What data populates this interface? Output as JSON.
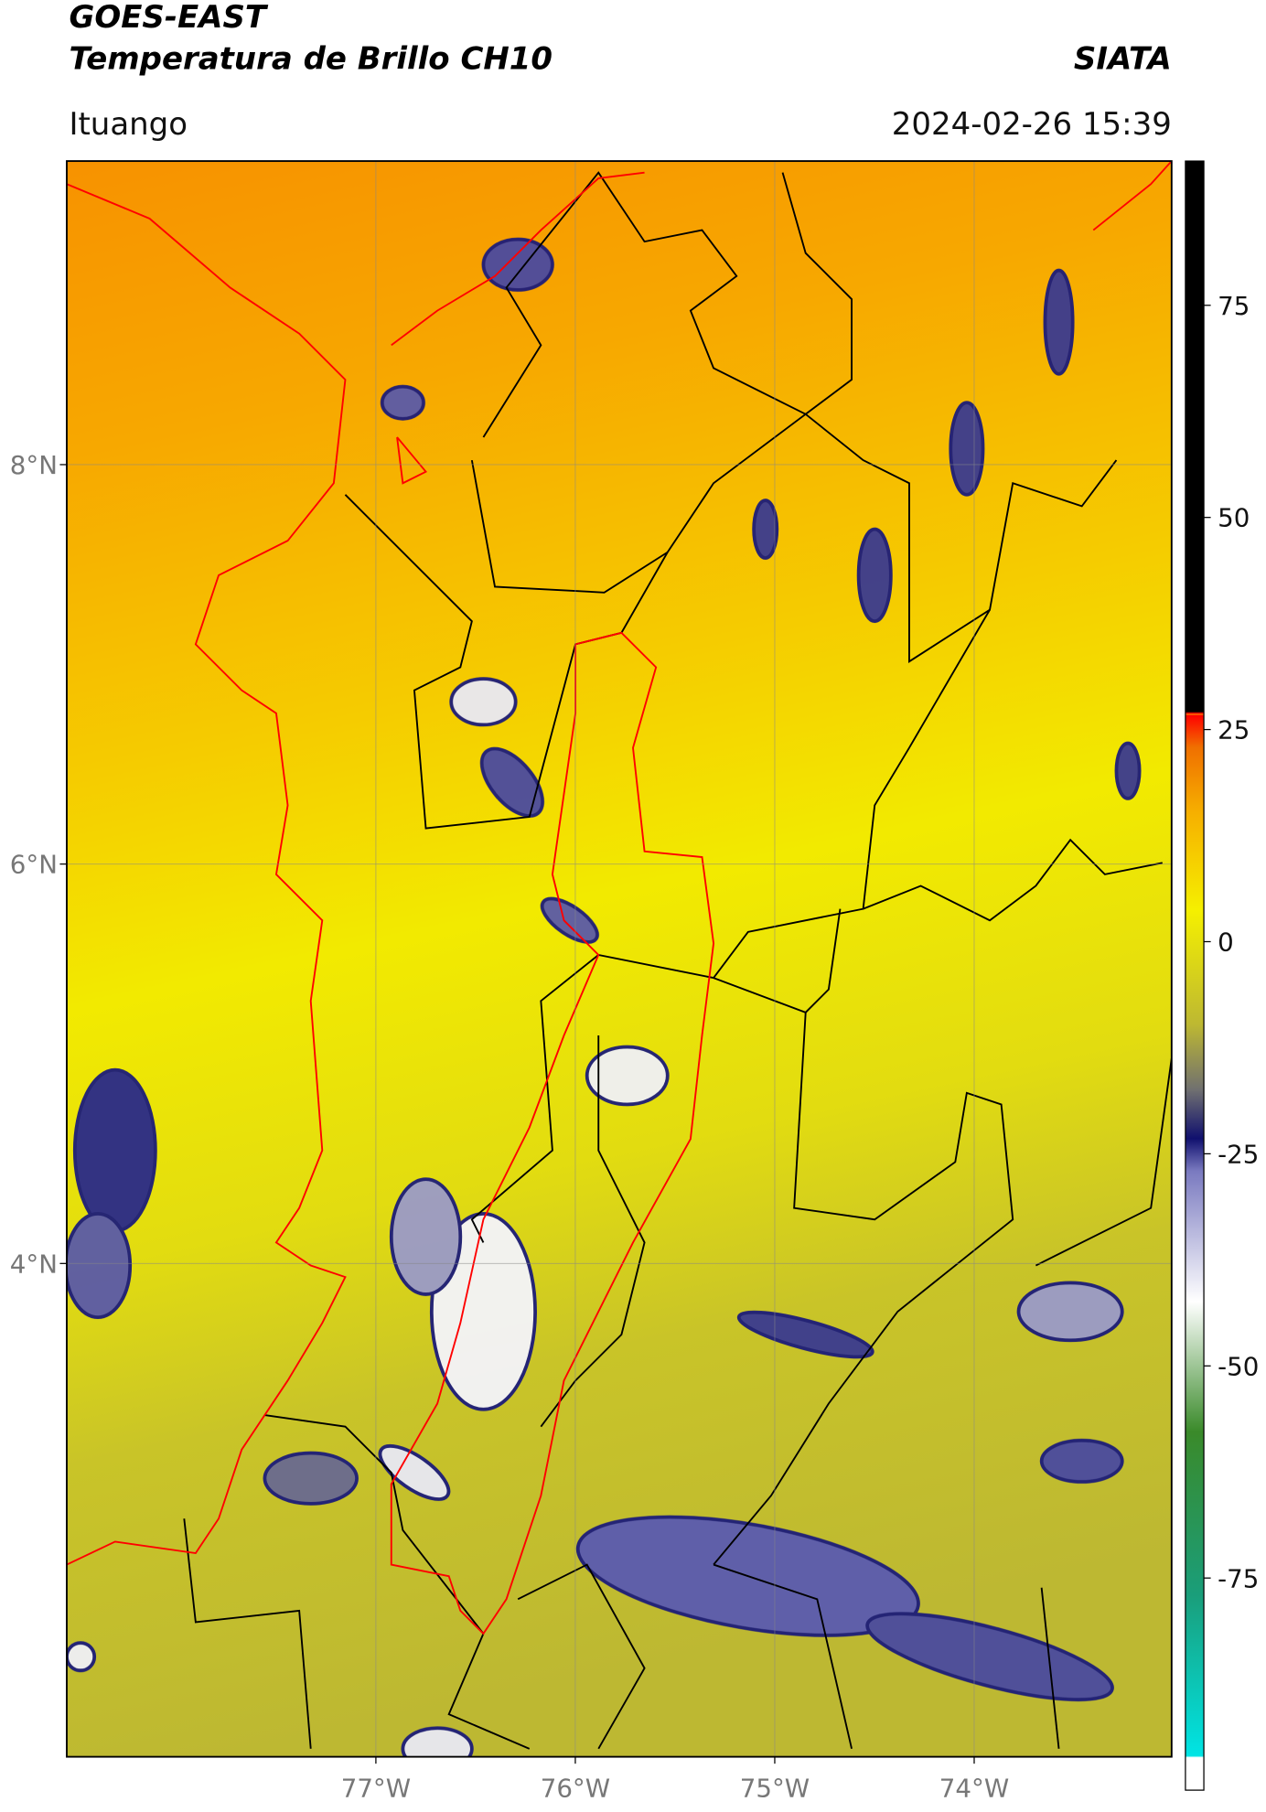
{
  "header": {
    "title": "GOES-EAST",
    "subtitle": "Temperatura de Brillo CH10",
    "source": "SIATA",
    "location": "Ituango",
    "timestamp": "2024-02-26 15:39"
  },
  "map": {
    "xlim": [
      -78.55,
      -73.01
    ],
    "ylim": [
      1.53,
      9.52
    ],
    "xticks": [
      {
        "value": -77,
        "label": "77°W"
      },
      {
        "value": -76,
        "label": "76°W"
      },
      {
        "value": -75,
        "label": "75°W"
      },
      {
        "value": -74,
        "label": "74°W"
      }
    ],
    "yticks": [
      {
        "value": 8,
        "label": "8°N"
      },
      {
        "value": 6,
        "label": "6°N"
      },
      {
        "value": 4,
        "label": "4°N"
      }
    ],
    "grid": true
  },
  "colorbar": {
    "lim": [
      -100,
      92
    ],
    "ticks": [
      75,
      50,
      25,
      0,
      -25,
      -50,
      -75
    ]
  }
}
